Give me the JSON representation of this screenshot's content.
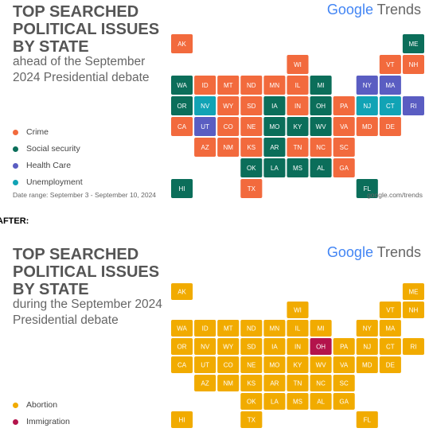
{
  "marker": "AFTER:",
  "panels": [
    {
      "title": "TOP SEARCHED POLITICAL ISSUES BY STATE",
      "subtitle": "ahead of the September 2024 Presidential debate",
      "logo": {
        "brand": "Google",
        "product": "Trends"
      },
      "legend": [
        {
          "label": "Crime",
          "color": "#f26a3d",
          "states": [
            "MT",
            "ND",
            "SD",
            "WY",
            "NE",
            "ID",
            "CA",
            "AZ",
            "NM",
            "CO",
            "KS",
            "TX",
            "MN",
            "WI",
            "IL",
            "IN",
            "TN",
            "GA",
            "SC",
            "NC",
            "VA",
            "PA",
            "AK",
            "DE",
            "MD",
            "NH",
            "VT"
          ]
        },
        {
          "label": "Social security",
          "color": "#0b6e5a",
          "states": [
            "WA",
            "OR",
            "OK",
            "IA",
            "MO",
            "AR",
            "LA",
            "MS",
            "AL",
            "FL",
            "KY",
            "WV",
            "OH",
            "MI",
            "ME",
            "HI"
          ]
        },
        {
          "label": "Health Care",
          "color": "#5a5dc2",
          "states": [
            "UT",
            "NY",
            "MA",
            "RI"
          ]
        },
        {
          "label": "Unemployment",
          "color": "#11a3b5",
          "states": [
            "NV",
            "NJ",
            "CT"
          ]
        }
      ],
      "footer": {
        "left": "Date range: September 3 - September 10, 2024",
        "right": "google.com/trends"
      }
    },
    {
      "title": "TOP SEARCHED POLITICAL ISSUES BY STATE",
      "subtitle": "during the September 2024 Presidential debate",
      "logo": {
        "brand": "Google",
        "product": "Trends"
      },
      "legend": [
        {
          "label": "Abortion",
          "color": "#f1ab00",
          "states": [
            "WA",
            "OR",
            "CA",
            "ID",
            "NV",
            "MT",
            "WY",
            "UT",
            "AZ",
            "CO",
            "NM",
            "ND",
            "SD",
            "NE",
            "KS",
            "OK",
            "TX",
            "MN",
            "IA",
            "MO",
            "AR",
            "LA",
            "WI",
            "IL",
            "MI",
            "IN",
            "KY",
            "TN",
            "MS",
            "AL",
            "GA",
            "FL",
            "SC",
            "NC",
            "VA",
            "WV",
            "PA",
            "NY",
            "VT",
            "NH",
            "ME",
            "MA",
            "RI",
            "CT",
            "NJ",
            "DE",
            "MD",
            "AK",
            "HI"
          ]
        },
        {
          "label": "Immigration",
          "color": "#b3134b",
          "states": [
            "OH"
          ]
        }
      ]
    }
  ]
}
